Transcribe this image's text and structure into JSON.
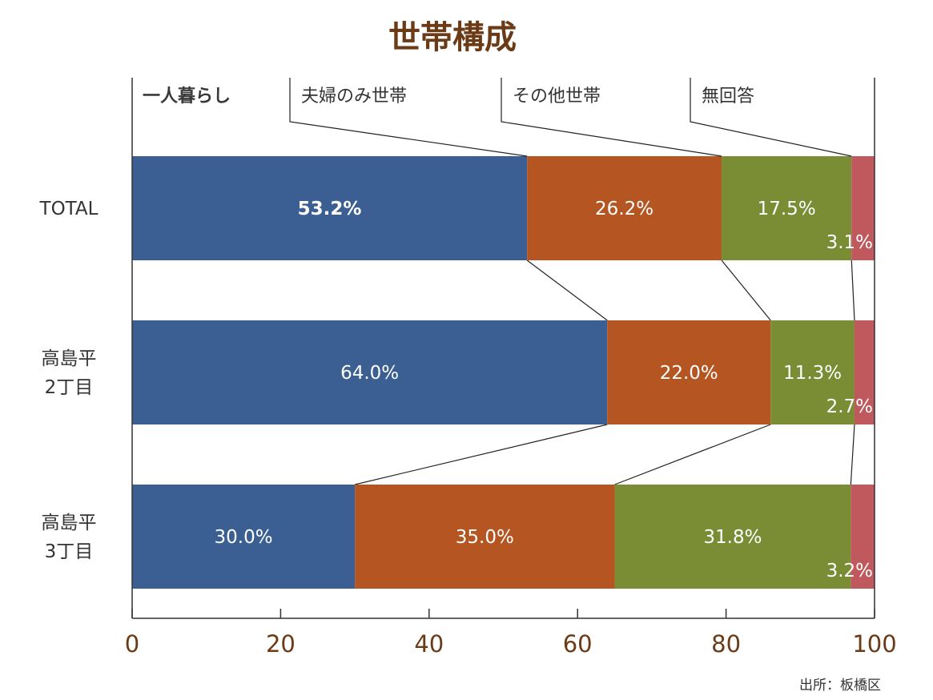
{
  "chart_data": {
    "type": "bar",
    "orientation": "horizontal",
    "stacked": true,
    "title": "世帯構成",
    "categories": [
      [
        "TOTAL"
      ],
      [
        "高島平",
        "2丁目"
      ],
      [
        "高島平",
        "3丁目"
      ]
    ],
    "series": [
      {
        "name": "一人暮らし",
        "values": [
          53.2,
          64.0,
          30.0
        ],
        "labels": [
          "53.2%",
          "64.0%",
          "30.0%"
        ],
        "color": "#3c5f93"
      },
      {
        "name": "夫婦のみ世帯",
        "values": [
          26.2,
          22.0,
          35.0
        ],
        "labels": [
          "26.2%",
          "22.0%",
          "35.0%"
        ],
        "color": "#b55522"
      },
      {
        "name": "その他世帯",
        "values": [
          17.5,
          11.3,
          31.8
        ],
        "labels": [
          "17.5%",
          "11.3%",
          "31.8%"
        ],
        "color": "#7a8c34"
      },
      {
        "name": "無回答",
        "values": [
          3.1,
          2.7,
          3.2
        ],
        "labels": [
          "3.1%",
          "2.7%",
          "3.2%"
        ],
        "color": "#c0595e"
      }
    ],
    "xlim": [
      0,
      100
    ],
    "xticks": [
      "0",
      "20",
      "40",
      "60",
      "80",
      "100"
    ],
    "legend_placement": "top",
    "grid": false
  },
  "source": "出所：板橋区",
  "colors": {
    "title": "#6b3a16",
    "axis": "#333333",
    "tick_labels": "#6b3a16"
  }
}
